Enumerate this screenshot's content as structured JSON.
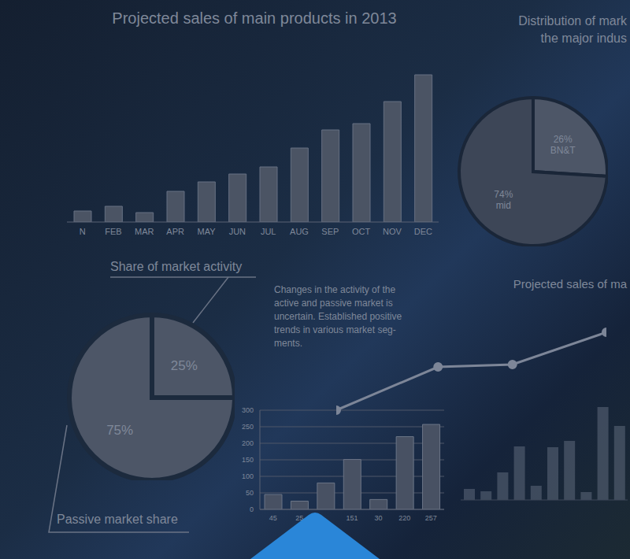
{
  "chart_data": [
    {
      "type": "bar",
      "title": "Projected sales of main products in 2013",
      "categories": [
        "N",
        "FEB",
        "MAR",
        "APR",
        "MAY",
        "JUN",
        "JUL",
        "AUG",
        "SEP",
        "OCT",
        "NOV",
        "DEC"
      ],
      "values": [
        14,
        20,
        12,
        39,
        51,
        61,
        70,
        94,
        117,
        125,
        153,
        187
      ],
      "ylim": [
        0,
        200
      ],
      "tick_labels": "x",
      "color": "#4b5464"
    },
    {
      "type": "pie",
      "title": "Distribution of mark\nthe major indus",
      "categories": [
        "BN&T",
        "mid"
      ],
      "values": [
        26,
        74
      ],
      "value_labels": [
        "26%",
        "74%"
      ],
      "data_labels": true,
      "colors": [
        "#4d5667",
        "#3d4657"
      ]
    },
    {
      "type": "pie",
      "title": "Share of market activity",
      "values": [
        25,
        75
      ],
      "value_labels": [
        "25%",
        "75%"
      ],
      "data_labels": true,
      "colors": [
        "#4d5667",
        "#4d5667"
      ],
      "annotations": [
        "Passive market share",
        "Changes in the activity of the\nactive and passive market is\nuncertain. Established positive\ntrends in various market seg-\nments."
      ]
    },
    {
      "type": "bar",
      "categories": [
        "45",
        "25",
        null,
        "151",
        "30",
        "220",
        "257"
      ],
      "values": [
        45,
        25,
        80,
        151,
        30,
        220,
        257
      ],
      "ylim": [
        0,
        300
      ],
      "yticks": [
        0,
        50,
        100,
        150,
        200,
        250,
        300
      ],
      "grid": true,
      "color": "#485163"
    },
    {
      "type": "line",
      "title": "Projected sales of ma",
      "x": [
        0,
        130,
        225,
        345
      ],
      "values": [
        19,
        74,
        77,
        118
      ],
      "xlim": [
        0,
        345
      ],
      "ylim": [
        0,
        140
      ],
      "marker": "circle",
      "tick_labels": false,
      "color": "#7d8698"
    },
    {
      "type": "bar",
      "values": [
        14,
        11,
        35,
        68,
        18,
        67,
        75,
        10,
        118,
        94
      ],
      "ylim": [
        0,
        130
      ],
      "tick_labels": false,
      "color": "#5f6a7c"
    }
  ]
}
